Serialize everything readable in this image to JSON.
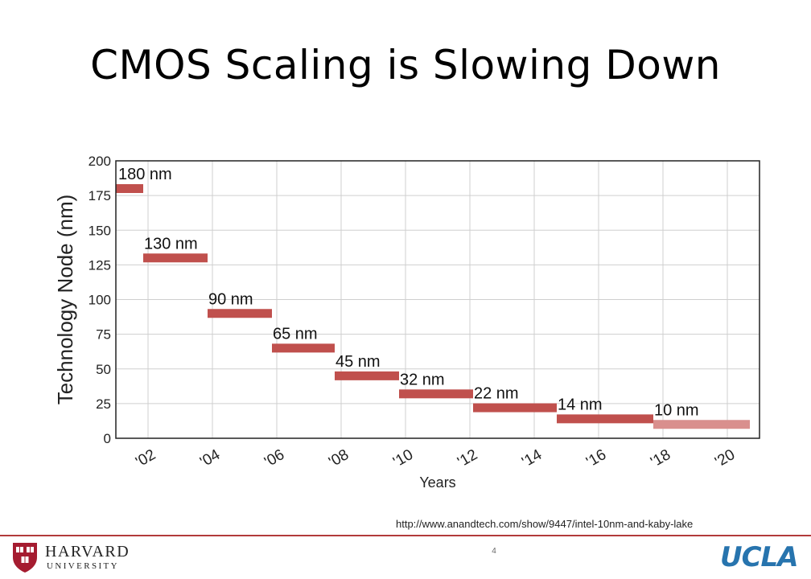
{
  "slide": {
    "title": "CMOS Scaling is Slowing Down",
    "source_url": "http://www.anandtech.com/show/9447/intel-10nm-and-kaby-lake",
    "page_number": "4"
  },
  "logos": {
    "harvard_name": "HARVARD",
    "harvard_sub": "UNIVERSITY",
    "ucla": "UCLA"
  },
  "colors": {
    "bar": "#c0504d",
    "bar_future": "#d98f8d",
    "ucla_blue": "#2774ae",
    "harvard_crimson": "#a51c30"
  },
  "chart_data": {
    "type": "bar",
    "orientation": "timeline",
    "xlabel": "Years",
    "ylabel": "Technology Node (nm)",
    "xlim": [
      2001,
      2021
    ],
    "ylim": [
      0,
      200
    ],
    "x_ticks": [
      2002,
      2004,
      2006,
      2008,
      2010,
      2012,
      2014,
      2016,
      2018,
      2020
    ],
    "x_tick_labels": [
      "'02",
      "'04",
      "'06",
      "'08",
      "'10",
      "'12",
      "'14",
      "'16",
      "'18",
      "'20"
    ],
    "y_ticks": [
      0,
      25,
      50,
      75,
      100,
      125,
      150,
      175,
      200
    ],
    "grid": true,
    "nodes": [
      {
        "label": "180 nm",
        "value": 180,
        "start": 2000.9,
        "end": 2001.85
      },
      {
        "label": "130 nm",
        "value": 130,
        "start": 2001.85,
        "end": 2003.85
      },
      {
        "label": "90 nm",
        "value": 90,
        "start": 2003.85,
        "end": 2005.85
      },
      {
        "label": "65 nm",
        "value": 65,
        "start": 2005.85,
        "end": 2007.8
      },
      {
        "label": "45 nm",
        "value": 45,
        "start": 2007.8,
        "end": 2009.8
      },
      {
        "label": "32 nm",
        "value": 32,
        "start": 2009.8,
        "end": 2012.1
      },
      {
        "label": "22 nm",
        "value": 22,
        "start": 2012.1,
        "end": 2014.7
      },
      {
        "label": "14 nm",
        "value": 14,
        "start": 2014.7,
        "end": 2017.7
      },
      {
        "label": "10 nm",
        "value": 10,
        "start": 2017.7,
        "end": 2020.7,
        "projected": true
      }
    ]
  }
}
